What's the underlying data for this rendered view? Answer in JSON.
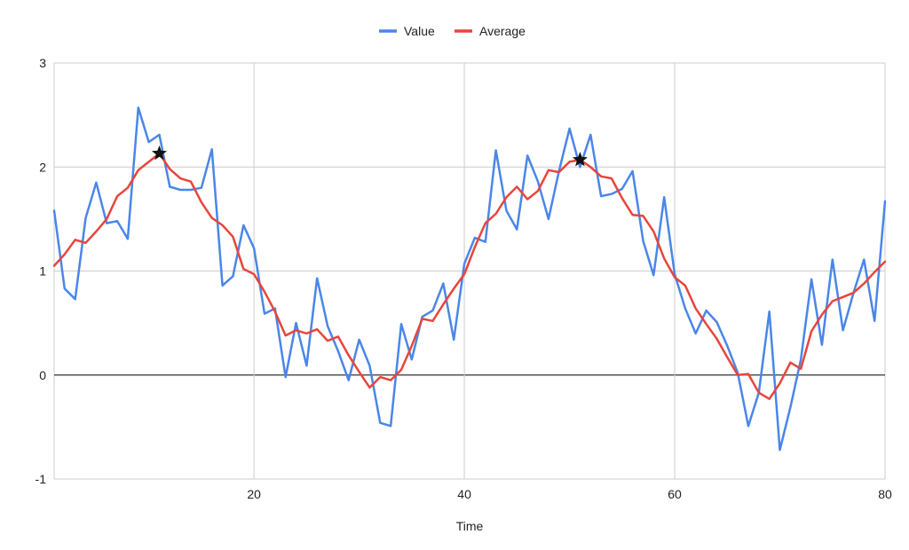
{
  "chart_data": {
    "type": "line",
    "title": "",
    "xlabel": "Time",
    "ylabel": "",
    "xlim": [
      1,
      80
    ],
    "ylim": [
      -1,
      3
    ],
    "x_ticks": [
      20,
      40,
      60,
      80
    ],
    "y_ticks": [
      -1,
      0,
      1,
      2,
      3
    ],
    "grid": true,
    "legend_position": "top-center",
    "series": [
      {
        "name": "Value",
        "color": "#4a86e8",
        "x": [
          1,
          2,
          3,
          4,
          5,
          6,
          7,
          8,
          9,
          10,
          11,
          12,
          13,
          14,
          15,
          16,
          17,
          18,
          19,
          20,
          21,
          22,
          23,
          24,
          25,
          26,
          27,
          28,
          29,
          30,
          31,
          32,
          33,
          34,
          35,
          36,
          37,
          38,
          39,
          40,
          41,
          42,
          43,
          44,
          45,
          46,
          47,
          48,
          49,
          50,
          51,
          52,
          53,
          54,
          55,
          56,
          57,
          58,
          59,
          60,
          61,
          62,
          63,
          64,
          65,
          66,
          67,
          68,
          69,
          70,
          71,
          72,
          73,
          74,
          75,
          76,
          77,
          78,
          79,
          80
        ],
        "values": [
          1.58,
          0.83,
          0.73,
          1.51,
          1.85,
          1.46,
          1.48,
          1.31,
          2.57,
          2.24,
          2.31,
          1.81,
          1.78,
          1.78,
          1.8,
          2.17,
          0.86,
          0.95,
          1.44,
          1.22,
          0.59,
          0.64,
          -0.02,
          0.5,
          0.09,
          0.93,
          0.47,
          0.23,
          -0.05,
          0.34,
          0.09,
          -0.46,
          -0.49,
          0.49,
          0.15,
          0.56,
          0.62,
          0.88,
          0.34,
          1.07,
          1.32,
          1.28,
          2.16,
          1.58,
          1.4,
          2.11,
          1.86,
          1.5,
          1.96,
          2.37,
          2.0,
          2.31,
          1.72,
          1.74,
          1.79,
          1.96,
          1.29,
          0.96,
          1.71,
          0.97,
          0.64,
          0.4,
          0.62,
          0.51,
          0.28,
          0.02,
          -0.49,
          -0.17,
          0.61,
          -0.72,
          -0.31,
          0.15,
          0.92,
          0.29,
          1.11,
          0.43,
          0.79,
          1.11,
          0.52,
          1.67
        ]
      },
      {
        "name": "Average",
        "color": "#e8453c",
        "x": [
          1,
          2,
          3,
          4,
          5,
          6,
          7,
          8,
          9,
          10,
          11,
          12,
          13,
          14,
          15,
          16,
          17,
          18,
          19,
          20,
          21,
          22,
          23,
          24,
          25,
          26,
          27,
          28,
          29,
          30,
          31,
          32,
          33,
          34,
          35,
          36,
          37,
          38,
          39,
          40,
          41,
          42,
          43,
          44,
          45,
          46,
          47,
          48,
          49,
          50,
          51,
          52,
          53,
          54,
          55,
          56,
          57,
          58,
          59,
          60,
          61,
          62,
          63,
          64,
          65,
          66,
          67,
          68,
          69,
          70,
          71,
          72,
          73,
          74,
          75,
          76,
          77,
          78,
          79,
          80
        ],
        "values": [
          1.05,
          1.16,
          1.3,
          1.27,
          1.38,
          1.5,
          1.72,
          1.8,
          1.97,
          2.05,
          2.13,
          1.98,
          1.89,
          1.86,
          1.66,
          1.51,
          1.44,
          1.33,
          1.02,
          0.97,
          0.8,
          0.61,
          0.38,
          0.43,
          0.4,
          0.44,
          0.33,
          0.37,
          0.19,
          0.03,
          -0.12,
          -0.02,
          -0.05,
          0.05,
          0.28,
          0.54,
          0.52,
          0.68,
          0.83,
          0.97,
          1.23,
          1.46,
          1.55,
          1.71,
          1.81,
          1.69,
          1.77,
          1.97,
          1.95,
          2.05,
          2.07,
          2.0,
          1.91,
          1.89,
          1.7,
          1.54,
          1.53,
          1.38,
          1.12,
          0.94,
          0.86,
          0.64,
          0.49,
          0.35,
          0.17,
          0.0,
          0.01,
          -0.17,
          -0.23,
          -0.08,
          0.12,
          0.06,
          0.42,
          0.58,
          0.71,
          0.75,
          0.79,
          0.88,
          0.99,
          1.09
        ]
      }
    ],
    "markers": [
      {
        "series": "Average",
        "x": 11,
        "y": 2.13,
        "symbol": "star"
      },
      {
        "series": "Average",
        "x": 51,
        "y": 2.07,
        "symbol": "star"
      }
    ],
    "colors": {
      "gridline": "#cccccc",
      "zero_line": "#333333",
      "text": "#222222",
      "marker": "#111111"
    }
  }
}
